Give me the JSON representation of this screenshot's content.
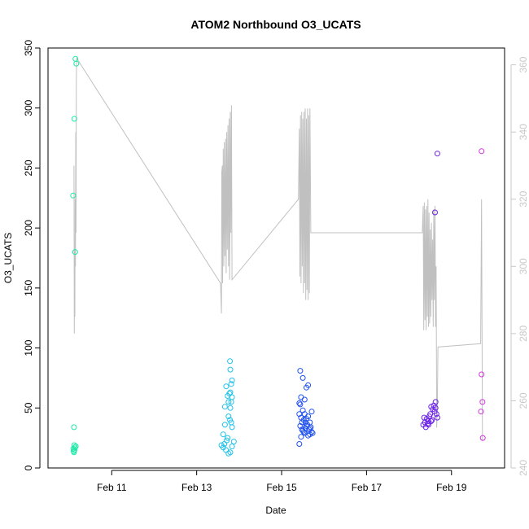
{
  "chart_data": {
    "type": "scatter",
    "title": "ATOM2 Northbound O3_UCATS",
    "xlabel": "Date",
    "ylabel": "O3_UCATS",
    "xlim": [
      "2017-02-09T12:00",
      "2017-02-20T06:00"
    ],
    "ylim": [
      0,
      350
    ],
    "y2lim": [
      240,
      365
    ],
    "x_ticks": [
      {
        "label": "Feb 11",
        "date": "2017-02-11T00:00"
      },
      {
        "label": "Feb 13",
        "date": "2017-02-13T00:00"
      },
      {
        "label": "Feb 15",
        "date": "2017-02-15T00:00"
      },
      {
        "label": "Feb 17",
        "date": "2017-02-17T00:00"
      },
      {
        "label": "Feb 19",
        "date": "2017-02-19T00:00"
      }
    ],
    "y_ticks": [
      0,
      50,
      100,
      150,
      200,
      250,
      300,
      350
    ],
    "y2_ticks": [
      240,
      260,
      280,
      300,
      320,
      340,
      360
    ],
    "colors": {
      "axis": "#000000",
      "line": "#c0c0c0",
      "right_axis": "#c8c8c8"
    },
    "series": [
      {
        "color": "#1de9a6",
        "points": [
          [
            "2017-02-10T02:10",
            227
          ],
          [
            "2017-02-10T02:50",
            291
          ],
          [
            "2017-02-10T03:30",
            341
          ],
          [
            "2017-02-10T04:00",
            337
          ],
          [
            "2017-02-10T03:20",
            180
          ],
          [
            "2017-02-10T02:40",
            34
          ],
          [
            "2017-02-10T02:20",
            16
          ],
          [
            "2017-02-10T02:30",
            14
          ],
          [
            "2017-02-10T02:50",
            19
          ],
          [
            "2017-02-10T03:10",
            17
          ],
          [
            "2017-02-10T03:40",
            18
          ],
          [
            "2017-02-10T03:00",
            15
          ],
          [
            "2017-02-10T02:40",
            13
          ]
        ]
      },
      {
        "color": "#22c2e8",
        "points": [
          [
            "2017-02-13T14:00",
            19
          ],
          [
            "2017-02-13T15:00",
            17
          ],
          [
            "2017-02-13T15:40",
            20
          ],
          [
            "2017-02-13T16:30",
            15
          ],
          [
            "2017-02-13T17:00",
            23
          ],
          [
            "2017-02-13T17:30",
            25
          ],
          [
            "2017-02-13T18:00",
            12
          ],
          [
            "2017-02-13T19:00",
            13
          ],
          [
            "2017-02-13T20:00",
            18
          ],
          [
            "2017-02-13T21:00",
            22
          ],
          [
            "2017-02-13T15:00",
            28
          ],
          [
            "2017-02-13T16:00",
            36
          ],
          [
            "2017-02-13T16:00",
            51
          ],
          [
            "2017-02-13T18:00",
            43
          ],
          [
            "2017-02-13T20:00",
            34
          ],
          [
            "2017-02-13T16:40",
            68
          ],
          [
            "2017-02-13T17:30",
            60
          ],
          [
            "2017-02-13T18:00",
            55
          ],
          [
            "2017-02-13T18:30",
            62
          ],
          [
            "2017-02-13T19:00",
            63
          ],
          [
            "2017-02-13T19:30",
            70
          ],
          [
            "2017-02-13T19:00",
            82
          ],
          [
            "2017-02-13T18:50",
            89
          ],
          [
            "2017-02-13T20:00",
            73
          ],
          [
            "2017-02-13T20:00",
            59
          ],
          [
            "2017-02-13T19:30",
            55
          ],
          [
            "2017-02-13T19:00",
            50
          ],
          [
            "2017-02-13T19:30",
            38
          ],
          [
            "2017-02-13T18:50",
            40
          ]
        ]
      },
      {
        "color": "#2050ee",
        "points": [
          [
            "2017-02-15T10:00",
            20
          ],
          [
            "2017-02-15T11:00",
            26
          ],
          [
            "2017-02-15T12:00",
            31
          ],
          [
            "2017-02-15T13:00",
            29
          ],
          [
            "2017-02-15T14:00",
            35
          ],
          [
            "2017-02-15T15:00",
            27
          ],
          [
            "2017-02-15T16:00",
            33
          ],
          [
            "2017-02-15T17:00",
            30
          ],
          [
            "2017-02-15T10:30",
            35
          ],
          [
            "2017-02-15T11:30",
            38
          ],
          [
            "2017-02-15T12:30",
            40
          ],
          [
            "2017-02-15T13:30",
            33
          ],
          [
            "2017-02-15T14:30",
            36
          ],
          [
            "2017-02-15T15:30",
            32
          ],
          [
            "2017-02-15T16:30",
            34
          ],
          [
            "2017-02-15T17:30",
            29
          ],
          [
            "2017-02-15T10:00",
            45
          ],
          [
            "2017-02-15T11:00",
            42
          ],
          [
            "2017-02-15T12:00",
            48
          ],
          [
            "2017-02-15T13:00",
            45
          ],
          [
            "2017-02-15T14:00",
            41
          ],
          [
            "2017-02-15T15:00",
            43
          ],
          [
            "2017-02-15T16:00",
            38
          ],
          [
            "2017-02-15T17:00",
            47
          ],
          [
            "2017-02-15T10:00",
            54
          ],
          [
            "2017-02-15T11:00",
            59
          ],
          [
            "2017-02-15T10:30",
            53
          ],
          [
            "2017-02-15T13:00",
            57
          ],
          [
            "2017-02-15T14:00",
            67
          ],
          [
            "2017-02-15T15:00",
            69
          ],
          [
            "2017-02-15T12:00",
            75
          ],
          [
            "2017-02-15T10:30",
            81
          ],
          [
            "2017-02-15T16:00",
            28
          ],
          [
            "2017-02-15T13:30",
            38
          ],
          [
            "2017-02-15T12:30",
            30
          ],
          [
            "2017-02-15T11:30",
            32
          ]
        ]
      },
      {
        "color": "#6a1fe8",
        "points": [
          [
            "2017-02-18T08:00",
            36
          ],
          [
            "2017-02-18T09:00",
            38
          ],
          [
            "2017-02-18T10:00",
            41
          ],
          [
            "2017-02-18T11:00",
            39
          ],
          [
            "2017-02-18T09:30",
            34
          ],
          [
            "2017-02-18T10:30",
            37
          ],
          [
            "2017-02-18T12:00",
            45
          ],
          [
            "2017-02-18T13:00",
            40
          ],
          [
            "2017-02-18T14:00",
            52
          ],
          [
            "2017-02-18T15:00",
            55
          ],
          [
            "2017-02-18T13:30",
            49
          ],
          [
            "2017-02-18T12:30",
            51
          ],
          [
            "2017-02-18T11:30",
            43
          ],
          [
            "2017-02-18T15:30",
            45
          ],
          [
            "2017-02-18T16:00",
            42
          ],
          [
            "2017-02-18T14:30",
            47
          ],
          [
            "2017-02-18T16:00",
            262
          ],
          [
            "2017-02-18T14:40",
            213
          ],
          [
            "2017-02-18T08:30",
            42
          ],
          [
            "2017-02-18T15:00",
            50
          ],
          [
            "2017-02-18T11:00",
            36
          ],
          [
            "2017-02-18T12:30",
            39
          ]
        ]
      },
      {
        "color": "#d633e0",
        "points": [
          [
            "2017-02-19T17:00",
            264
          ],
          [
            "2017-02-19T17:00",
            78
          ],
          [
            "2017-02-19T17:30",
            55
          ],
          [
            "2017-02-19T16:40",
            47
          ],
          [
            "2017-02-19T17:40",
            25
          ]
        ]
      }
    ],
    "altitude_line": [
      [
        "2017-02-10T02:40",
        330
      ],
      [
        "2017-02-10T02:50",
        280
      ],
      [
        "2017-02-10T03:00",
        305
      ],
      [
        "2017-02-10T03:10",
        285
      ],
      [
        "2017-02-10T03:20",
        320
      ],
      [
        "2017-02-10T03:30",
        300
      ],
      [
        "2017-02-10T03:40",
        340
      ],
      [
        "2017-02-10T03:50",
        310
      ],
      [
        "2017-02-10T04:00",
        355
      ],
      [
        "2017-02-10T04:10",
        362
      ],
      [
        "2017-02-13T13:30",
        295
      ],
      [
        "2017-02-13T14:00",
        286
      ],
      [
        "2017-02-13T14:10",
        328
      ],
      [
        "2017-02-13T14:30",
        330
      ],
      [
        "2017-02-13T14:40",
        295
      ],
      [
        "2017-02-13T15:00",
        335
      ],
      [
        "2017-02-13T15:20",
        300
      ],
      [
        "2017-02-13T15:40",
        337
      ],
      [
        "2017-02-13T16:00",
        303
      ],
      [
        "2017-02-13T16:20",
        338
      ],
      [
        "2017-02-13T16:40",
        298
      ],
      [
        "2017-02-13T17:00",
        340
      ],
      [
        "2017-02-13T17:20",
        305
      ],
      [
        "2017-02-13T17:40",
        342
      ],
      [
        "2017-02-13T18:00",
        300
      ],
      [
        "2017-02-13T18:20",
        344
      ],
      [
        "2017-02-13T18:40",
        296
      ],
      [
        "2017-02-13T19:00",
        346
      ],
      [
        "2017-02-13T19:20",
        310
      ],
      [
        "2017-02-13T19:40",
        348
      ],
      [
        "2017-02-13T20:00",
        296
      ],
      [
        "2017-02-15T09:30",
        320
      ],
      [
        "2017-02-15T10:00",
        341
      ],
      [
        "2017-02-15T10:20",
        297
      ],
      [
        "2017-02-15T10:40",
        345
      ],
      [
        "2017-02-15T11:00",
        295
      ],
      [
        "2017-02-15T11:20",
        346
      ],
      [
        "2017-02-15T11:40",
        300
      ],
      [
        "2017-02-15T12:00",
        344
      ],
      [
        "2017-02-15T12:20",
        292
      ],
      [
        "2017-02-15T12:40",
        346
      ],
      [
        "2017-02-15T13:00",
        295
      ],
      [
        "2017-02-15T13:20",
        347
      ],
      [
        "2017-02-15T13:40",
        290
      ],
      [
        "2017-02-15T14:00",
        344
      ],
      [
        "2017-02-15T14:20",
        293
      ],
      [
        "2017-02-15T14:40",
        347
      ],
      [
        "2017-02-15T15:00",
        290
      ],
      [
        "2017-02-15T15:20",
        345
      ],
      [
        "2017-02-15T15:40",
        292
      ],
      [
        "2017-02-15T16:00",
        347
      ],
      [
        "2017-02-15T16:30",
        310
      ],
      [
        "2017-02-18T07:30",
        310
      ],
      [
        "2017-02-18T08:00",
        318
      ],
      [
        "2017-02-18T08:20",
        281
      ],
      [
        "2017-02-18T08:40",
        319
      ],
      [
        "2017-02-18T09:00",
        284
      ],
      [
        "2017-02-18T09:20",
        317
      ],
      [
        "2017-02-18T09:40",
        281
      ],
      [
        "2017-02-18T10:00",
        318
      ],
      [
        "2017-02-18T10:20",
        285
      ],
      [
        "2017-02-18T10:40",
        320
      ],
      [
        "2017-02-18T11:00",
        282
      ],
      [
        "2017-02-18T11:20",
        316
      ],
      [
        "2017-02-18T11:40",
        283
      ],
      [
        "2017-02-18T12:00",
        311
      ],
      [
        "2017-02-18T12:20",
        285
      ],
      [
        "2017-02-18T12:40",
        313
      ],
      [
        "2017-02-18T13:00",
        290
      ],
      [
        "2017-02-18T13:20",
        308
      ],
      [
        "2017-02-18T13:40",
        282
      ],
      [
        "2017-02-18T14:00",
        317
      ],
      [
        "2017-02-18T14:20",
        290
      ],
      [
        "2017-02-18T14:40",
        318
      ],
      [
        "2017-02-18T15:00",
        282
      ],
      [
        "2017-02-18T15:20",
        300
      ],
      [
        "2017-02-18T15:40",
        252
      ],
      [
        "2017-02-18T16:00",
        258
      ],
      [
        "2017-02-18T16:20",
        276
      ],
      [
        "2017-02-19T16:30",
        277
      ],
      [
        "2017-02-19T17:00",
        320
      ],
      [
        "2017-02-19T17:30",
        248
      ]
    ]
  }
}
